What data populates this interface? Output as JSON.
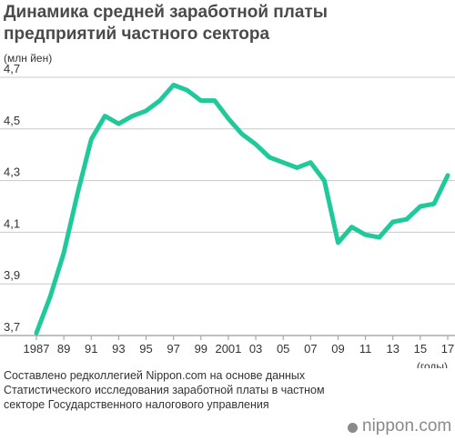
{
  "chart_data": {
    "type": "line",
    "title": "Динамика средней заработной платы предприятий частного сектора",
    "ylabel": "(млн йен)",
    "xlabel": "(годы)",
    "ylim": [
      3.7,
      4.7
    ],
    "yticks": [
      "3,7",
      "3,9",
      "4,1",
      "4,3",
      "4,5",
      "4,7"
    ],
    "ytick_values": [
      3.7,
      3.9,
      4.1,
      4.3,
      4.5,
      4.7
    ],
    "xlim": [
      1987,
      2017
    ],
    "xticks": [
      "1987",
      "89",
      "91",
      "93",
      "95",
      "97",
      "99",
      "2001",
      "03",
      "05",
      "07",
      "09",
      "11",
      "13",
      "15",
      "17"
    ],
    "xtick_values": [
      1987,
      1989,
      1991,
      1993,
      1995,
      1997,
      1999,
      2001,
      2003,
      2005,
      2007,
      2009,
      2011,
      2013,
      2015,
      2017
    ],
    "grid": true,
    "line_color": "#1fc99a",
    "x": [
      1987,
      1988,
      1989,
      1990,
      1991,
      1992,
      1993,
      1994,
      1995,
      1996,
      1997,
      1998,
      1999,
      2000,
      2001,
      2002,
      2003,
      2004,
      2005,
      2006,
      2007,
      2008,
      2009,
      2010,
      2011,
      2012,
      2013,
      2014,
      2015,
      2016,
      2017
    ],
    "series": [
      {
        "values": [
          3.71,
          3.85,
          4.02,
          4.25,
          4.46,
          4.55,
          4.52,
          4.55,
          4.57,
          4.61,
          4.67,
          4.65,
          4.61,
          4.61,
          4.54,
          4.48,
          4.44,
          4.39,
          4.37,
          4.35,
          4.37,
          4.3,
          4.06,
          4.12,
          4.09,
          4.08,
          4.14,
          4.15,
          4.2,
          4.21,
          4.32
        ]
      }
    ]
  },
  "source_text": "Составлено редколлегией Nippon.com на основе данных Статистического исследования заработной платы в частном секторе Государственного налогового управления",
  "brand": "nippon.com"
}
